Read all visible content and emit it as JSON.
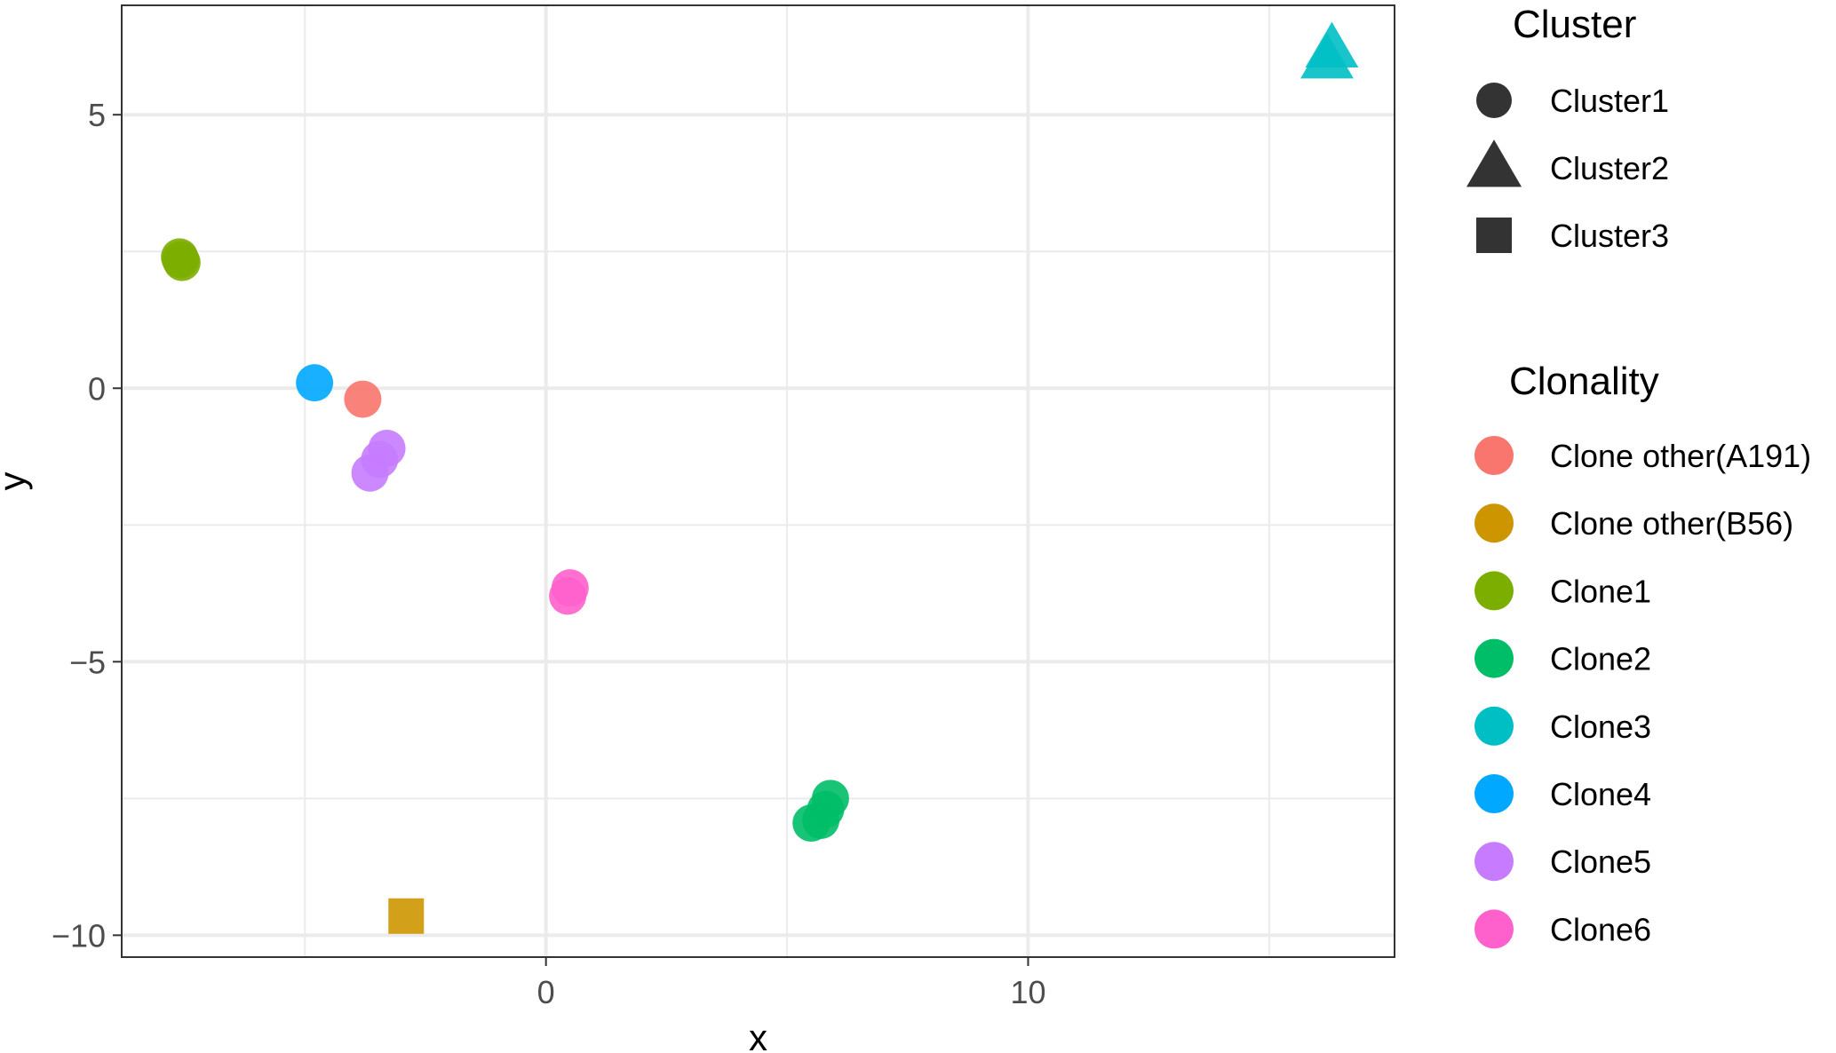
{
  "chart_data": {
    "type": "scatter",
    "xlabel": "x",
    "ylabel": "y",
    "xlim": [
      -8.8,
      17.6
    ],
    "ylim": [
      -10.4,
      7.0
    ],
    "x_ticks": [
      0,
      10
    ],
    "y_ticks": [
      5,
      0,
      -5,
      -10
    ],
    "x_tick_labels": [
      "0",
      "10"
    ],
    "y_tick_labels": [
      "5",
      "0",
      "−5",
      "−10"
    ],
    "grid": true,
    "legend_position": "right",
    "shape_legend": {
      "title": "Cluster",
      "items": [
        {
          "label": "Cluster1",
          "shape": "circle"
        },
        {
          "label": "Cluster2",
          "shape": "triangle"
        },
        {
          "label": "Cluster3",
          "shape": "square"
        }
      ]
    },
    "color_legend": {
      "title": "Clonality",
      "items": [
        {
          "label": "Clone other(A191)",
          "color": "#F8766D"
        },
        {
          "label": "Clone other(B56)",
          "color": "#CD9600"
        },
        {
          "label": "Clone1",
          "color": "#7CAE00"
        },
        {
          "label": "Clone2",
          "color": "#00BE67"
        },
        {
          "label": "Clone3",
          "color": "#00BFC4"
        },
        {
          "label": "Clone4",
          "color": "#00A9FF"
        },
        {
          "label": "Clone5",
          "color": "#C77CFF"
        },
        {
          "label": "Clone6",
          "color": "#FF61CC"
        }
      ]
    },
    "points": [
      {
        "x": -7.6,
        "y": 2.4,
        "clone": "Clone1",
        "cluster": "Cluster1"
      },
      {
        "x": -7.55,
        "y": 2.3,
        "clone": "Clone1",
        "cluster": "Cluster1"
      },
      {
        "x": -7.58,
        "y": 2.35,
        "clone": "Clone1",
        "cluster": "Cluster1"
      },
      {
        "x": -4.8,
        "y": 0.1,
        "clone": "Clone4",
        "cluster": "Cluster1"
      },
      {
        "x": -3.8,
        "y": -0.2,
        "clone": "Clone other(A191)",
        "cluster": "Cluster1"
      },
      {
        "x": -3.3,
        "y": -1.1,
        "clone": "Clone5",
        "cluster": "Cluster1"
      },
      {
        "x": -3.45,
        "y": -1.3,
        "clone": "Clone5",
        "cluster": "Cluster1"
      },
      {
        "x": -3.65,
        "y": -1.55,
        "clone": "Clone5",
        "cluster": "Cluster1"
      },
      {
        "x": 0.5,
        "y": -3.65,
        "clone": "Clone6",
        "cluster": "Cluster1"
      },
      {
        "x": 0.45,
        "y": -3.8,
        "clone": "Clone6",
        "cluster": "Cluster1"
      },
      {
        "x": 5.9,
        "y": -7.5,
        "clone": "Clone2",
        "cluster": "Cluster1"
      },
      {
        "x": 5.8,
        "y": -7.7,
        "clone": "Clone2",
        "cluster": "Cluster1"
      },
      {
        "x": 5.7,
        "y": -7.9,
        "clone": "Clone2",
        "cluster": "Cluster1"
      },
      {
        "x": 5.5,
        "y": -7.95,
        "clone": "Clone2",
        "cluster": "Cluster1"
      },
      {
        "x": 16.3,
        "y": 6.2,
        "clone": "Clone3",
        "cluster": "Cluster2"
      },
      {
        "x": 16.2,
        "y": 6.0,
        "clone": "Clone3",
        "cluster": "Cluster2"
      },
      {
        "x": -2.9,
        "y": -9.65,
        "clone": "Clone other(B56)",
        "cluster": "Cluster3"
      }
    ]
  }
}
